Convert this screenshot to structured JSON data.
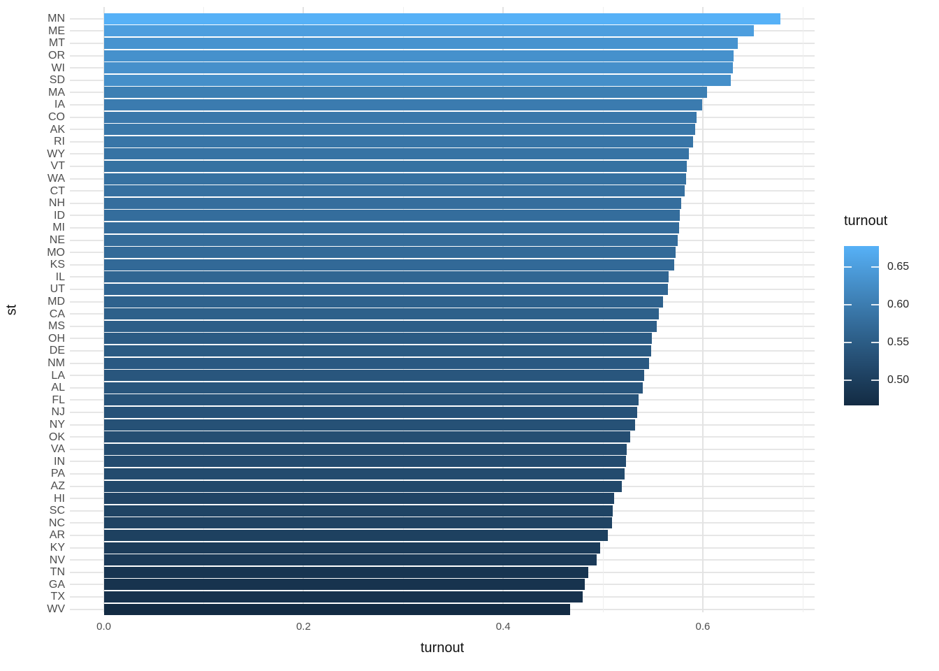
{
  "figure": {
    "x_axis_title": "turnout",
    "y_axis_title": "st",
    "x_tick_labels": [
      "0.0",
      "0.2",
      "0.4",
      "0.6"
    ],
    "legend": {
      "title": "turnout",
      "tick_labels": [
        "0.65",
        "0.60",
        "0.55",
        "0.50"
      ],
      "tick_values": [
        0.65,
        0.6,
        0.55,
        0.5
      ]
    }
  },
  "chart_data": {
    "type": "bar",
    "orientation": "horizontal",
    "title": "",
    "xlabel": "turnout",
    "ylabel": "st",
    "xlim": [
      -0.034,
      0.712
    ],
    "x_major_ticks": [
      0.0,
      0.2,
      0.4,
      0.6
    ],
    "x_minor_ticks": [
      0.1,
      0.3,
      0.5,
      0.7
    ],
    "grid": true,
    "legend_position": "right",
    "categories": [
      "MN",
      "ME",
      "MT",
      "OR",
      "WI",
      "SD",
      "MA",
      "IA",
      "CO",
      "AK",
      "RI",
      "WY",
      "VT",
      "WA",
      "CT",
      "NH",
      "ID",
      "MI",
      "NE",
      "MO",
      "KS",
      "IL",
      "UT",
      "MD",
      "CA",
      "MS",
      "OH",
      "DE",
      "NM",
      "LA",
      "AL",
      "FL",
      "NJ",
      "NY",
      "OK",
      "VA",
      "IN",
      "PA",
      "AZ",
      "HI",
      "SC",
      "NC",
      "AR",
      "KY",
      "NV",
      "TN",
      "GA",
      "TX",
      "WV"
    ],
    "values": [
      0.678,
      0.651,
      0.635,
      0.631,
      0.63,
      0.628,
      0.604,
      0.599,
      0.594,
      0.592,
      0.59,
      0.586,
      0.584,
      0.583,
      0.582,
      0.578,
      0.577,
      0.576,
      0.575,
      0.573,
      0.571,
      0.566,
      0.565,
      0.56,
      0.556,
      0.554,
      0.549,
      0.548,
      0.546,
      0.541,
      0.54,
      0.536,
      0.534,
      0.532,
      0.527,
      0.524,
      0.523,
      0.522,
      0.519,
      0.511,
      0.51,
      0.509,
      0.505,
      0.497,
      0.494,
      0.485,
      0.482,
      0.48,
      0.467
    ],
    "fill_scale": {
      "field": "turnout",
      "low": "#132B43",
      "high": "#56B1F7",
      "domain": [
        0.467,
        0.678
      ]
    }
  }
}
